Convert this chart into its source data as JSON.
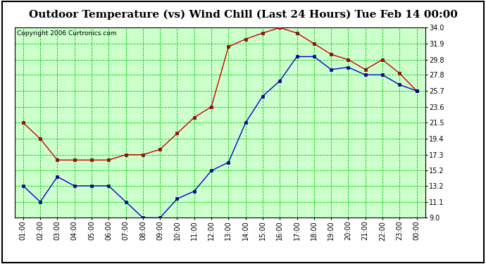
{
  "title": "Outdoor Temperature (vs) Wind Chill (Last 24 Hours) Tue Feb 14 00:00",
  "copyright": "Copyright 2006 Curtronics.com",
  "hours": [
    "01:00",
    "02:00",
    "03:00",
    "04:00",
    "05:00",
    "06:00",
    "07:00",
    "08:00",
    "09:00",
    "10:00",
    "11:00",
    "12:00",
    "13:00",
    "14:00",
    "15:00",
    "16:00",
    "17:00",
    "18:00",
    "19:00",
    "20:00",
    "21:00",
    "22:00",
    "23:00",
    "00:00"
  ],
  "outdoor_temp": [
    21.5,
    19.4,
    16.6,
    16.6,
    16.6,
    16.6,
    17.3,
    17.3,
    18.0,
    20.1,
    22.2,
    23.6,
    31.5,
    32.5,
    33.3,
    34.0,
    33.3,
    31.9,
    30.5,
    29.8,
    28.5,
    29.8,
    28.0,
    25.7
  ],
  "wind_chill": [
    13.2,
    11.1,
    14.4,
    13.2,
    13.2,
    13.2,
    11.1,
    9.0,
    9.0,
    11.5,
    12.5,
    15.2,
    16.3,
    21.5,
    25.0,
    27.0,
    30.2,
    30.2,
    28.5,
    28.8,
    27.8,
    27.8,
    26.5,
    25.7
  ],
  "temp_color": "#cc0000",
  "chill_color": "#0000cc",
  "bg_color": "#ffffff",
  "plot_bg": "#ccffcc",
  "grid_color": "#00cc00",
  "border_color": "#000000",
  "ymin": 9.0,
  "ymax": 34.0,
  "yticks": [
    9.0,
    11.1,
    13.2,
    15.2,
    17.3,
    19.4,
    21.5,
    23.6,
    25.7,
    27.8,
    29.8,
    31.9,
    34.0
  ],
  "title_fontsize": 11,
  "copyright_fontsize": 6.5,
  "tick_fontsize": 7.0
}
